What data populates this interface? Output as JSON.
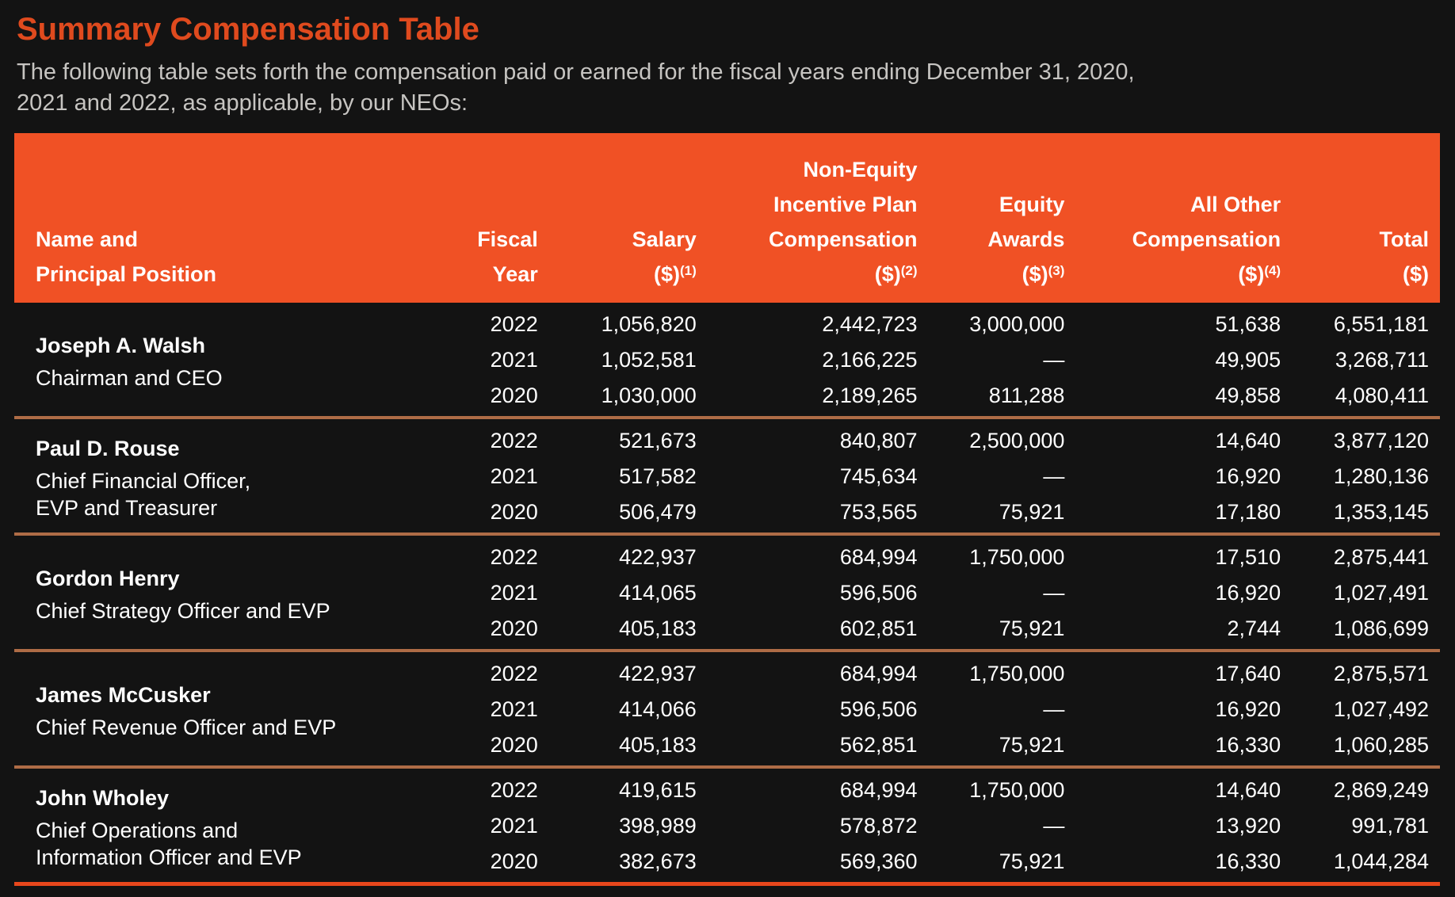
{
  "page": {
    "title": "Summary Compensation Table",
    "intro": "The following table sets forth the compensation paid or earned for the fiscal years ending December 31, 2020, 2021 and 2022, as applicable, by our NEOs:"
  },
  "colors": {
    "background": "#131313",
    "title_orange": "#df4a1e",
    "header_background_orange": "#f05125",
    "header_text": "#ffffff",
    "body_text": "#ffffff",
    "intro_gray": "#c6c4c1",
    "group_divider_copper": "#ae6c46",
    "bottom_divider_orange": "#e8471c"
  },
  "table": {
    "columns": [
      {
        "id": "name",
        "align": "left",
        "lines": [
          "Name and",
          "Principal Position"
        ]
      },
      {
        "id": "fiscal",
        "align": "right",
        "lines": [
          "Fiscal",
          "Year"
        ]
      },
      {
        "id": "salary",
        "align": "right",
        "lines": [
          "Salary",
          {
            "text": "($)",
            "sup": "(1)"
          }
        ]
      },
      {
        "id": "neipc",
        "align": "right",
        "lines": [
          "Non-Equity",
          "Incentive Plan",
          "Compensation",
          {
            "text": "($)",
            "sup": "(2)"
          }
        ]
      },
      {
        "id": "equity",
        "align": "right",
        "lines": [
          "Equity",
          "Awards",
          {
            "text": "($)",
            "sup": "(3)"
          }
        ]
      },
      {
        "id": "other",
        "align": "right",
        "lines": [
          "All Other",
          "Compensation",
          {
            "text": "($)",
            "sup": "(4)"
          }
        ]
      },
      {
        "id": "total",
        "align": "right",
        "lines": [
          "Total",
          "($)"
        ]
      }
    ],
    "groups": [
      {
        "name": "Joseph A. Walsh",
        "position_lines": [
          "Chairman and CEO"
        ],
        "rows": [
          {
            "fiscal": "2022",
            "salary": "1,056,820",
            "neipc": "2,442,723",
            "equity": "3,000,000",
            "other": "51,638",
            "total": "6,551,181"
          },
          {
            "fiscal": "2021",
            "salary": "1,052,581",
            "neipc": "2,166,225",
            "equity": "—",
            "other": "49,905",
            "total": "3,268,711"
          },
          {
            "fiscal": "2020",
            "salary": "1,030,000",
            "neipc": "2,189,265",
            "equity": "811,288",
            "other": "49,858",
            "total": "4,080,411"
          }
        ]
      },
      {
        "name": "Paul D. Rouse",
        "position_lines": [
          "Chief Financial Officer,",
          "EVP and Treasurer"
        ],
        "rows": [
          {
            "fiscal": "2022",
            "salary": "521,673",
            "neipc": "840,807",
            "equity": "2,500,000",
            "other": "14,640",
            "total": "3,877,120"
          },
          {
            "fiscal": "2021",
            "salary": "517,582",
            "neipc": "745,634",
            "equity": "—",
            "other": "16,920",
            "total": "1,280,136"
          },
          {
            "fiscal": "2020",
            "salary": "506,479",
            "neipc": "753,565",
            "equity": "75,921",
            "other": "17,180",
            "total": "1,353,145"
          }
        ]
      },
      {
        "name": "Gordon Henry",
        "position_lines": [
          "Chief Strategy Officer and EVP"
        ],
        "rows": [
          {
            "fiscal": "2022",
            "salary": "422,937",
            "neipc": "684,994",
            "equity": "1,750,000",
            "other": "17,510",
            "total": "2,875,441"
          },
          {
            "fiscal": "2021",
            "salary": "414,065",
            "neipc": "596,506",
            "equity": "—",
            "other": "16,920",
            "total": "1,027,491"
          },
          {
            "fiscal": "2020",
            "salary": "405,183",
            "neipc": "602,851",
            "equity": "75,921",
            "other": "2,744",
            "total": "1,086,699"
          }
        ]
      },
      {
        "name": "James McCusker",
        "position_lines": [
          "Chief Revenue Officer and EVP"
        ],
        "rows": [
          {
            "fiscal": "2022",
            "salary": "422,937",
            "neipc": "684,994",
            "equity": "1,750,000",
            "other": "17,640",
            "total": "2,875,571"
          },
          {
            "fiscal": "2021",
            "salary": "414,066",
            "neipc": "596,506",
            "equity": "—",
            "other": "16,920",
            "total": "1,027,492"
          },
          {
            "fiscal": "2020",
            "salary": "405,183",
            "neipc": "562,851",
            "equity": "75,921",
            "other": "16,330",
            "total": "1,060,285"
          }
        ]
      },
      {
        "name": "John Wholey",
        "position_lines": [
          "Chief Operations and",
          "Information Officer and EVP"
        ],
        "rows": [
          {
            "fiscal": "2022",
            "salary": "419,615",
            "neipc": "684,994",
            "equity": "1,750,000",
            "other": "14,640",
            "total": "2,869,249"
          },
          {
            "fiscal": "2021",
            "salary": "398,989",
            "neipc": "578,872",
            "equity": "—",
            "other": "13,920",
            "total": "991,781"
          },
          {
            "fiscal": "2020",
            "salary": "382,673",
            "neipc": "569,360",
            "equity": "75,921",
            "other": "16,330",
            "total": "1,044,284"
          }
        ]
      }
    ]
  }
}
